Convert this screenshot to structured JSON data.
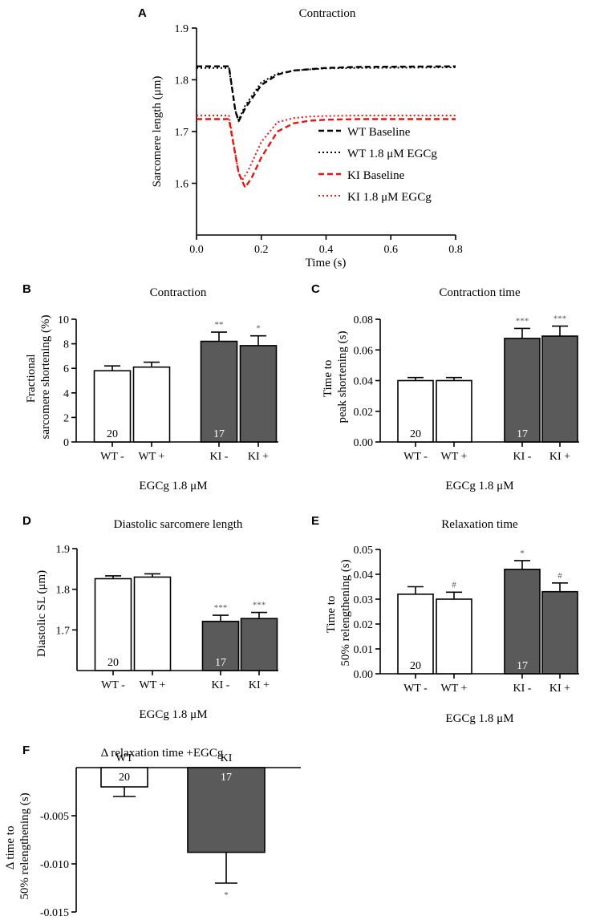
{
  "colors": {
    "wt": "#000000",
    "ki": "#e8140c",
    "bar_wt": "#ffffff",
    "bar_ki": "#5a5a5a",
    "sig": "#555555"
  },
  "chart_data": [
    {
      "panel": "A",
      "type": "line",
      "title": "Contraction",
      "xlabel": "Time (s)",
      "ylabel": "Sarcomere length (μm)",
      "xlim": [
        0,
        0.8
      ],
      "ylim": [
        1.5,
        1.9
      ],
      "xticks": [
        "0.0",
        "0.2",
        "0.4",
        "0.6",
        "0.8"
      ],
      "yticks": [
        "1.6",
        "1.7",
        "1.8",
        "1.9"
      ],
      "series": [
        {
          "name": "WT Baseline",
          "style": "dashed",
          "color": "#000000",
          "x": [
            0,
            0.1,
            0.12,
            0.13,
            0.15,
            0.2,
            0.25,
            0.3,
            0.4,
            0.5,
            0.8
          ],
          "y": [
            1.826,
            1.826,
            1.74,
            1.72,
            1.745,
            1.79,
            1.81,
            1.818,
            1.823,
            1.825,
            1.826
          ]
        },
        {
          "name": "WT 1.8 μM EGCg",
          "style": "dotted",
          "color": "#000000",
          "x": [
            0,
            0.1,
            0.12,
            0.13,
            0.15,
            0.2,
            0.25,
            0.3,
            0.4,
            0.5,
            0.8
          ],
          "y": [
            1.823,
            1.823,
            1.74,
            1.722,
            1.75,
            1.795,
            1.812,
            1.818,
            1.822,
            1.823,
            1.824
          ]
        },
        {
          "name": "KI Baseline",
          "style": "dashed",
          "color": "#e8140c",
          "x": [
            0,
            0.1,
            0.13,
            0.15,
            0.17,
            0.2,
            0.25,
            0.3,
            0.35,
            0.4,
            0.5,
            0.8
          ],
          "y": [
            1.724,
            1.724,
            1.62,
            1.592,
            1.61,
            1.65,
            1.7,
            1.716,
            1.721,
            1.723,
            1.724,
            1.724
          ]
        },
        {
          "name": "KI 1.8 μM EGCg",
          "style": "dotted",
          "color": "#e8140c",
          "x": [
            0,
            0.1,
            0.13,
            0.14,
            0.16,
            0.2,
            0.25,
            0.3,
            0.35,
            0.4,
            0.5,
            0.8
          ],
          "y": [
            1.731,
            1.731,
            1.62,
            1.605,
            1.625,
            1.68,
            1.718,
            1.726,
            1.729,
            1.73,
            1.731,
            1.731
          ]
        }
      ]
    },
    {
      "panel": "B",
      "type": "bar",
      "title": "Contraction",
      "ylabel": [
        "Fractional",
        "sarcomere shortening (%)"
      ],
      "xlabel": "EGCg 1.8 μM",
      "categories": [
        "WT -",
        "WT +",
        "KI -",
        "KI +"
      ],
      "values": [
        5.8,
        6.1,
        8.2,
        7.85
      ],
      "errors": [
        0.4,
        0.4,
        0.75,
        0.8
      ],
      "significance": [
        "",
        "",
        "**",
        "*"
      ],
      "n_labels": [
        "20",
        "",
        "17",
        ""
      ],
      "ylim": [
        0,
        10
      ],
      "yticks": [
        "0",
        "2",
        "4",
        "6",
        "8",
        "10"
      ],
      "tickvals": [
        0,
        2,
        4,
        6,
        8,
        10
      ]
    },
    {
      "panel": "C",
      "type": "bar",
      "title": "Contraction time",
      "ylabel": [
        "Time to",
        "peak shortening (s)"
      ],
      "xlabel": "EGCg 1.8 μM",
      "categories": [
        "WT -",
        "WT +",
        "KI -",
        "KI +"
      ],
      "values": [
        0.04,
        0.04,
        0.0675,
        0.069
      ],
      "errors": [
        0.002,
        0.002,
        0.0065,
        0.0065
      ],
      "significance": [
        "",
        "",
        "***",
        "***"
      ],
      "n_labels": [
        "20",
        "",
        "17",
        ""
      ],
      "ylim": [
        0,
        0.08
      ],
      "yticks": [
        "0.00",
        "0.02",
        "0.04",
        "0.06",
        "0.08"
      ],
      "tickvals": [
        0,
        0.02,
        0.04,
        0.06,
        0.08
      ]
    },
    {
      "panel": "D",
      "type": "bar",
      "title": "Diastolic sarcomere length",
      "ylabel": [
        "Diastolic SL (μm)"
      ],
      "xlabel": "EGCg 1.8 μM",
      "categories": [
        "WT -",
        "WT +",
        "KI -",
        "KI +"
      ],
      "values": [
        1.826,
        1.83,
        1.721,
        1.728
      ],
      "errors": [
        0.007,
        0.008,
        0.015,
        0.015
      ],
      "significance": [
        "",
        "",
        "***",
        "***"
      ],
      "n_labels": [
        "20",
        "",
        "17",
        ""
      ],
      "ylim": [
        1.6,
        1.9
      ],
      "yticks": [
        "1.7",
        "1.8",
        "1.9"
      ],
      "tickvals": [
        1.7,
        1.8,
        1.9
      ]
    },
    {
      "panel": "E",
      "type": "bar",
      "title": "Relaxation time",
      "ylabel": [
        "Time to",
        "50% relengthening (s)"
      ],
      "xlabel": "EGCg 1.8 μM",
      "categories": [
        "WT -",
        "WT +",
        "KI -",
        "KI +"
      ],
      "values": [
        0.032,
        0.03,
        0.042,
        0.033
      ],
      "errors": [
        0.003,
        0.0028,
        0.0035,
        0.0035
      ],
      "significance": [
        "",
        "#",
        "*",
        "#"
      ],
      "n_labels": [
        "20",
        "",
        "17",
        ""
      ],
      "ylim": [
        0,
        0.05
      ],
      "yticks": [
        "0.00",
        "0.01",
        "0.02",
        "0.03",
        "0.04",
        "0.05"
      ],
      "tickvals": [
        0,
        0.01,
        0.02,
        0.03,
        0.04,
        0.05
      ]
    },
    {
      "panel": "F",
      "type": "bar",
      "title": "Δ relaxation time +EGCg",
      "ylabel": [
        "Δ time to",
        "50% relengthening (s)"
      ],
      "categories": [
        "WT",
        "KI"
      ],
      "values": [
        -0.002,
        -0.0088
      ],
      "errors": [
        0.001,
        0.0032
      ],
      "significance": [
        "",
        "*"
      ],
      "n_labels": [
        "20",
        "17"
      ],
      "ylim": [
        -0.015,
        0
      ],
      "yticks": [
        "-0.005",
        "-0.010",
        "-0.015"
      ],
      "tickvals": [
        -0.005,
        -0.01,
        -0.015
      ]
    }
  ]
}
